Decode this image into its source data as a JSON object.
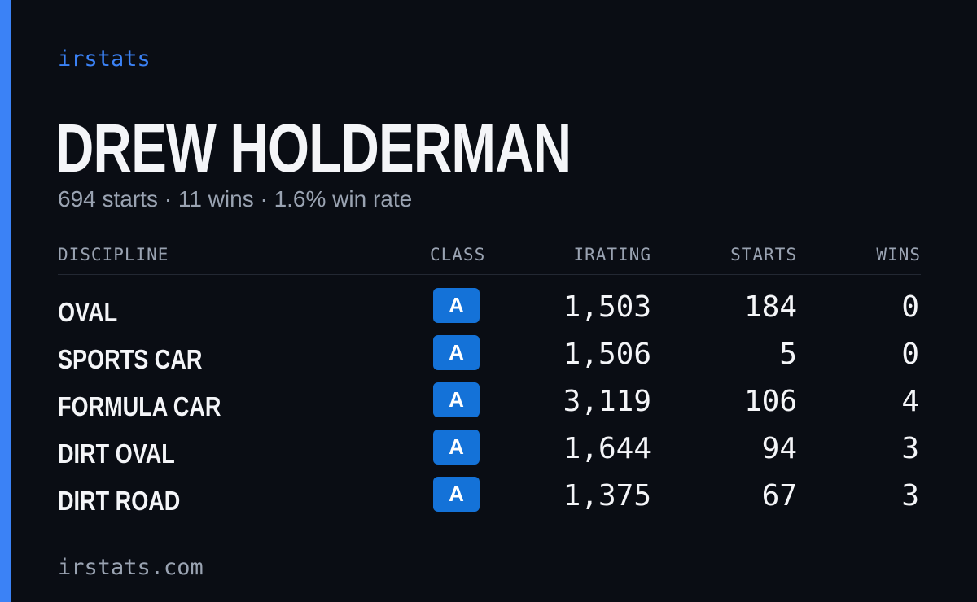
{
  "brand": "irstats",
  "driver": {
    "name": "DREW HOLDERMAN",
    "summary": "694 starts · 11 wins · 1.6% win rate"
  },
  "table": {
    "headers": {
      "discipline": "DISCIPLINE",
      "class": "CLASS",
      "irating": "IRATING",
      "starts": "STARTS",
      "wins": "WINS"
    },
    "rows": [
      {
        "discipline": "OVAL",
        "class": "A",
        "irating": "1,503",
        "starts": "184",
        "wins": "0"
      },
      {
        "discipline": "SPORTS CAR",
        "class": "A",
        "irating": "1,506",
        "starts": "5",
        "wins": "0"
      },
      {
        "discipline": "FORMULA CAR",
        "class": "A",
        "irating": "3,119",
        "starts": "106",
        "wins": "4"
      },
      {
        "discipline": "DIRT OVAL",
        "class": "A",
        "irating": "1,644",
        "starts": "94",
        "wins": "3"
      },
      {
        "discipline": "DIRT ROAD",
        "class": "A",
        "irating": "1,375",
        "starts": "67",
        "wins": "3"
      }
    ]
  },
  "footer": "irstats.com",
  "colors": {
    "accent": "#3b82f6",
    "class_badge": "#1472d8",
    "background": "#0a0d14"
  }
}
